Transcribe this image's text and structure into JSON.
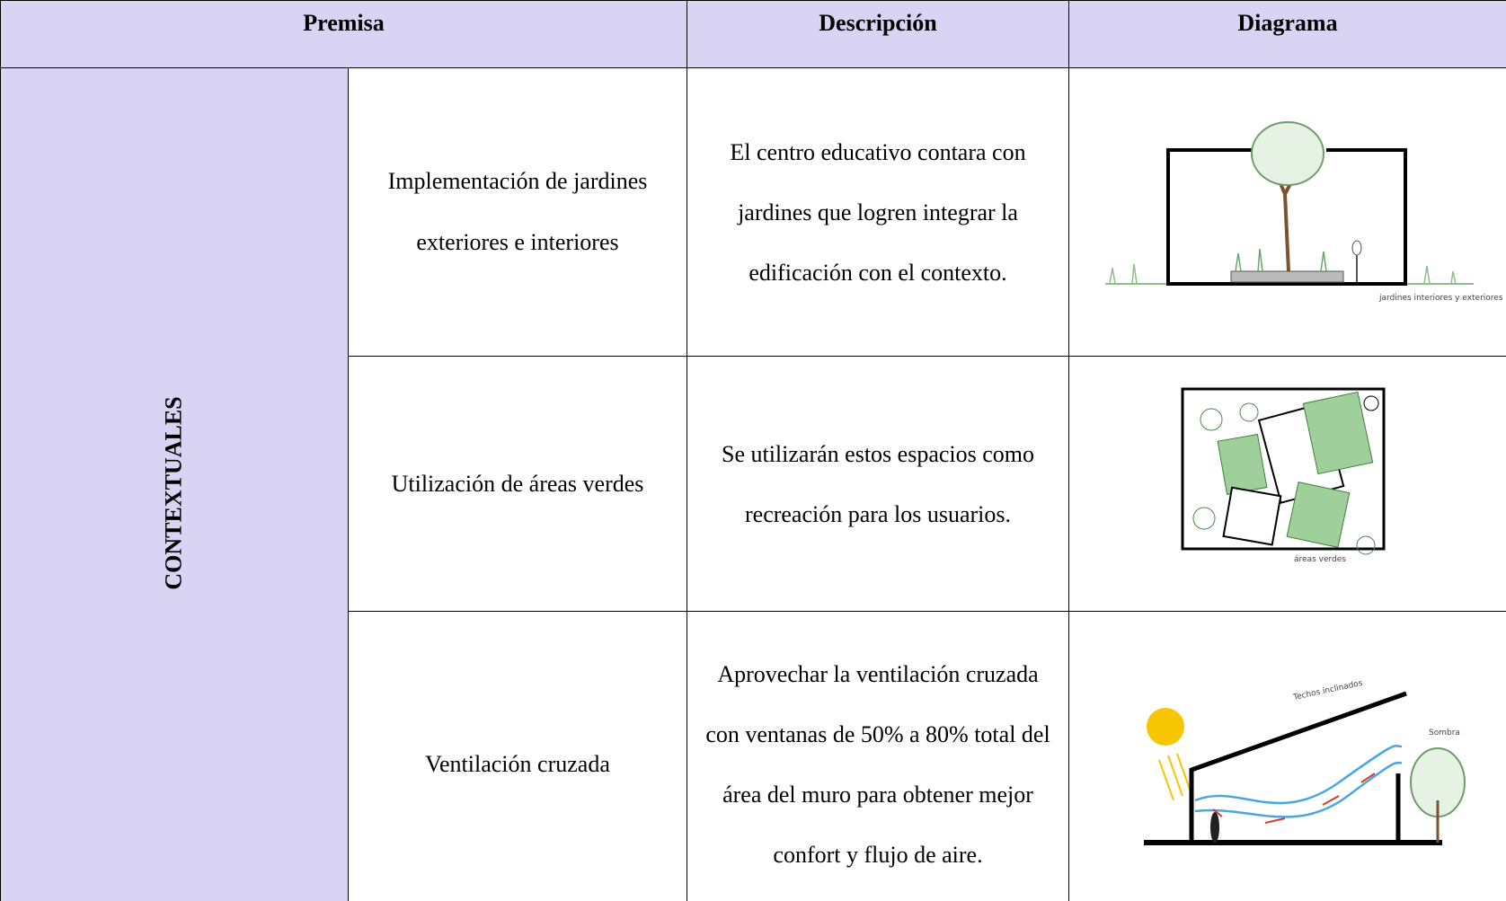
{
  "header": {
    "premisa": "Premisa",
    "descripcion": "Descripción",
    "diagrama": "Diagrama"
  },
  "category": "CONTEXTUALES",
  "rows": [
    {
      "premise": "Implementación de jardines exteriores e interiores",
      "description": "El centro educativo contara con jardines que logren integrar la edificación con el contexto.",
      "diagram_label": "jardines interiores y exteriores"
    },
    {
      "premise": "Utilización de áreas verdes",
      "description": "Se utilizarán estos espacios como recreación para los usuarios.",
      "diagram_label": "áreas verdes"
    },
    {
      "premise": "Ventilación cruzada",
      "description": "Aprovechar la ventilación cruzada con ventanas de 50% a 80% total del área del muro para obtener mejor confort y flujo de aire.",
      "diagram_label": "Techos inclinados",
      "diagram_label_2": "Sombra"
    }
  ]
}
